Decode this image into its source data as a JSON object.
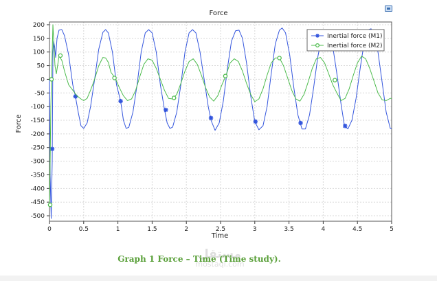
{
  "chart_data": {
    "type": "line",
    "title": "Force",
    "xlabel": "Time",
    "ylabel": "Force",
    "xlim": [
      0,
      5
    ],
    "ylim": [
      -520,
      210
    ],
    "xticks": [
      0,
      0.5,
      1,
      1.5,
      2,
      2.5,
      3,
      3.5,
      4,
      4.5,
      5
    ],
    "xtick_labels": [
      "0",
      "0.5",
      "1",
      "1.5",
      "2",
      "2.5",
      "3",
      "3.5",
      "4",
      "4.5",
      "5"
    ],
    "yticks": [
      200,
      150,
      100,
      50,
      0,
      -50,
      -100,
      -150,
      -200,
      -250,
      -300,
      -350,
      -400,
      -450,
      -500
    ],
    "ytick_labels": [
      "200",
      "150",
      "100",
      "50",
      "0",
      "-50",
      "-100",
      "-150",
      "-200",
      "-250",
      "-300",
      "-350",
      "-400",
      "-450",
      "-500"
    ],
    "grid": true,
    "legend_position": "top-right",
    "series": [
      {
        "name": "Inertial force (M1)",
        "color": "#3355dd",
        "marker": "asterisk",
        "points": [
          [
            0.0,
            0
          ],
          [
            0.01,
            -350
          ],
          [
            0.025,
            -510
          ],
          [
            0.04,
            -300
          ],
          [
            0.05,
            100
          ],
          [
            0.06,
            140
          ],
          [
            0.075,
            120
          ],
          [
            0.09,
            80
          ],
          [
            0.11,
            150
          ],
          [
            0.14,
            180
          ],
          [
            0.18,
            182
          ],
          [
            0.22,
            160
          ],
          [
            0.28,
            90
          ],
          [
            0.34,
            -20
          ],
          [
            0.38,
            -63
          ],
          [
            0.42,
            -120
          ],
          [
            0.46,
            -170
          ],
          [
            0.5,
            -180
          ],
          [
            0.55,
            -160
          ],
          [
            0.6,
            -100
          ],
          [
            0.66,
            0
          ],
          [
            0.72,
            110
          ],
          [
            0.78,
            172
          ],
          [
            0.82,
            182
          ],
          [
            0.86,
            170
          ],
          [
            0.92,
            100
          ],
          [
            0.98,
            -20
          ],
          [
            1.04,
            -80
          ],
          [
            1.08,
            -150
          ],
          [
            1.12,
            -180
          ],
          [
            1.16,
            -176
          ],
          [
            1.22,
            -120
          ],
          [
            1.28,
            -20
          ],
          [
            1.34,
            100
          ],
          [
            1.4,
            170
          ],
          [
            1.45,
            182
          ],
          [
            1.5,
            170
          ],
          [
            1.56,
            100
          ],
          [
            1.62,
            -20
          ],
          [
            1.68,
            -110
          ],
          [
            1.72,
            -160
          ],
          [
            1.76,
            -180
          ],
          [
            1.8,
            -175
          ],
          [
            1.86,
            -120
          ],
          [
            1.92,
            -20
          ],
          [
            1.98,
            100
          ],
          [
            2.04,
            170
          ],
          [
            2.09,
            182
          ],
          [
            2.14,
            170
          ],
          [
            2.2,
            100
          ],
          [
            2.26,
            0
          ],
          [
            2.32,
            -100
          ],
          [
            2.36,
            -150
          ],
          [
            2.42,
            -187
          ],
          [
            2.48,
            -160
          ],
          [
            2.54,
            -80
          ],
          [
            2.6,
            40
          ],
          [
            2.66,
            140
          ],
          [
            2.72,
            178
          ],
          [
            2.77,
            180
          ],
          [
            2.82,
            150
          ],
          [
            2.88,
            60
          ],
          [
            2.94,
            -60
          ],
          [
            3.0,
            -155
          ],
          [
            3.06,
            -185
          ],
          [
            3.12,
            -170
          ],
          [
            3.18,
            -100
          ],
          [
            3.24,
            20
          ],
          [
            3.3,
            130
          ],
          [
            3.36,
            180
          ],
          [
            3.4,
            188
          ],
          [
            3.45,
            170
          ],
          [
            3.51,
            90
          ],
          [
            3.57,
            -30
          ],
          [
            3.63,
            -130
          ],
          [
            3.69,
            -182
          ],
          [
            3.74,
            -182
          ],
          [
            3.8,
            -130
          ],
          [
            3.86,
            -30
          ],
          [
            3.92,
            80
          ],
          [
            3.98,
            160
          ],
          [
            4.03,
            182
          ],
          [
            4.08,
            175
          ],
          [
            4.14,
            120
          ],
          [
            4.2,
            20
          ],
          [
            4.26,
            -90
          ],
          [
            4.31,
            -170
          ],
          [
            4.36,
            -182
          ],
          [
            4.42,
            -150
          ],
          [
            4.48,
            -70
          ],
          [
            4.54,
            40
          ],
          [
            4.6,
            140
          ],
          [
            4.66,
            182
          ],
          [
            4.7,
            185
          ],
          [
            4.74,
            170
          ],
          [
            4.8,
            100
          ],
          [
            4.86,
            -10
          ],
          [
            4.92,
            -120
          ],
          [
            4.98,
            -180
          ],
          [
            5.0,
            -182
          ]
        ],
        "markers": [
          [
            0.04,
            -255
          ],
          [
            0.38,
            -63
          ],
          [
            1.04,
            -80
          ],
          [
            1.7,
            -112
          ],
          [
            2.36,
            -142
          ],
          [
            3.01,
            -155
          ],
          [
            3.67,
            -160
          ],
          [
            4.32,
            -171
          ]
        ]
      },
      {
        "name": "Inertial force (M2)",
        "color": "#4cbb4c",
        "marker": "circle",
        "points": [
          [
            0.0,
            -460
          ],
          [
            0.01,
            -300
          ],
          [
            0.02,
            -100
          ],
          [
            0.03,
            0
          ],
          [
            0.04,
            100
          ],
          [
            0.05,
            200
          ],
          [
            0.06,
            150
          ],
          [
            0.08,
            50
          ],
          [
            0.1,
            20
          ],
          [
            0.14,
            85
          ],
          [
            0.18,
            70
          ],
          [
            0.22,
            30
          ],
          [
            0.28,
            -20
          ],
          [
            0.34,
            -40
          ],
          [
            0.4,
            -60
          ],
          [
            0.46,
            -72
          ],
          [
            0.5,
            -78
          ],
          [
            0.55,
            -70
          ],
          [
            0.6,
            -40
          ],
          [
            0.66,
            0
          ],
          [
            0.72,
            50
          ],
          [
            0.78,
            80
          ],
          [
            0.82,
            78
          ],
          [
            0.86,
            62
          ],
          [
            0.9,
            25
          ],
          [
            0.96,
            5
          ],
          [
            1.02,
            -30
          ],
          [
            1.08,
            -60
          ],
          [
            1.14,
            -78
          ],
          [
            1.2,
            -72
          ],
          [
            1.26,
            -40
          ],
          [
            1.32,
            10
          ],
          [
            1.38,
            55
          ],
          [
            1.44,
            75
          ],
          [
            1.5,
            70
          ],
          [
            1.56,
            40
          ],
          [
            1.62,
            0
          ],
          [
            1.68,
            -40
          ],
          [
            1.74,
            -70
          ],
          [
            1.8,
            -72
          ],
          [
            1.86,
            -55
          ],
          [
            1.92,
            -15
          ],
          [
            1.98,
            30
          ],
          [
            2.04,
            65
          ],
          [
            2.1,
            75
          ],
          [
            2.16,
            55
          ],
          [
            2.22,
            15
          ],
          [
            2.28,
            -30
          ],
          [
            2.34,
            -65
          ],
          [
            2.4,
            -80
          ],
          [
            2.46,
            -60
          ],
          [
            2.52,
            -20
          ],
          [
            2.58,
            15
          ],
          [
            2.64,
            60
          ],
          [
            2.7,
            75
          ],
          [
            2.76,
            65
          ],
          [
            2.82,
            30
          ],
          [
            2.88,
            -15
          ],
          [
            2.94,
            -55
          ],
          [
            3.0,
            -82
          ],
          [
            3.06,
            -72
          ],
          [
            3.12,
            -35
          ],
          [
            3.18,
            15
          ],
          [
            3.24,
            60
          ],
          [
            3.3,
            78
          ],
          [
            3.36,
            78
          ],
          [
            3.42,
            50
          ],
          [
            3.48,
            5
          ],
          [
            3.54,
            -40
          ],
          [
            3.6,
            -72
          ],
          [
            3.66,
            -80
          ],
          [
            3.72,
            -55
          ],
          [
            3.78,
            -10
          ],
          [
            3.84,
            40
          ],
          [
            3.9,
            75
          ],
          [
            3.96,
            80
          ],
          [
            4.02,
            60
          ],
          [
            4.08,
            20
          ],
          [
            4.14,
            -20
          ],
          [
            4.2,
            -50
          ],
          [
            4.26,
            -78
          ],
          [
            4.32,
            -70
          ],
          [
            4.38,
            -35
          ],
          [
            4.44,
            15
          ],
          [
            4.5,
            60
          ],
          [
            4.56,
            85
          ],
          [
            4.62,
            75
          ],
          [
            4.68,
            40
          ],
          [
            4.74,
            -5
          ],
          [
            4.8,
            -50
          ],
          [
            4.86,
            -75
          ],
          [
            4.92,
            -78
          ],
          [
            4.98,
            -70
          ],
          [
            5.0,
            -70
          ]
        ],
        "markers": [
          [
            0.01,
            -460
          ],
          [
            0.03,
            0
          ],
          [
            0.16,
            87
          ],
          [
            0.95,
            5
          ],
          [
            1.82,
            -68
          ],
          [
            2.57,
            12
          ],
          [
            3.36,
            78
          ],
          [
            4.17,
            -3
          ]
        ]
      }
    ]
  },
  "caption": "Graph 1 Force – Time (Time study).",
  "watermark": {
    "logo": "ﻣﺴﺘﻘﻞ",
    "text": "mostaql.com"
  }
}
